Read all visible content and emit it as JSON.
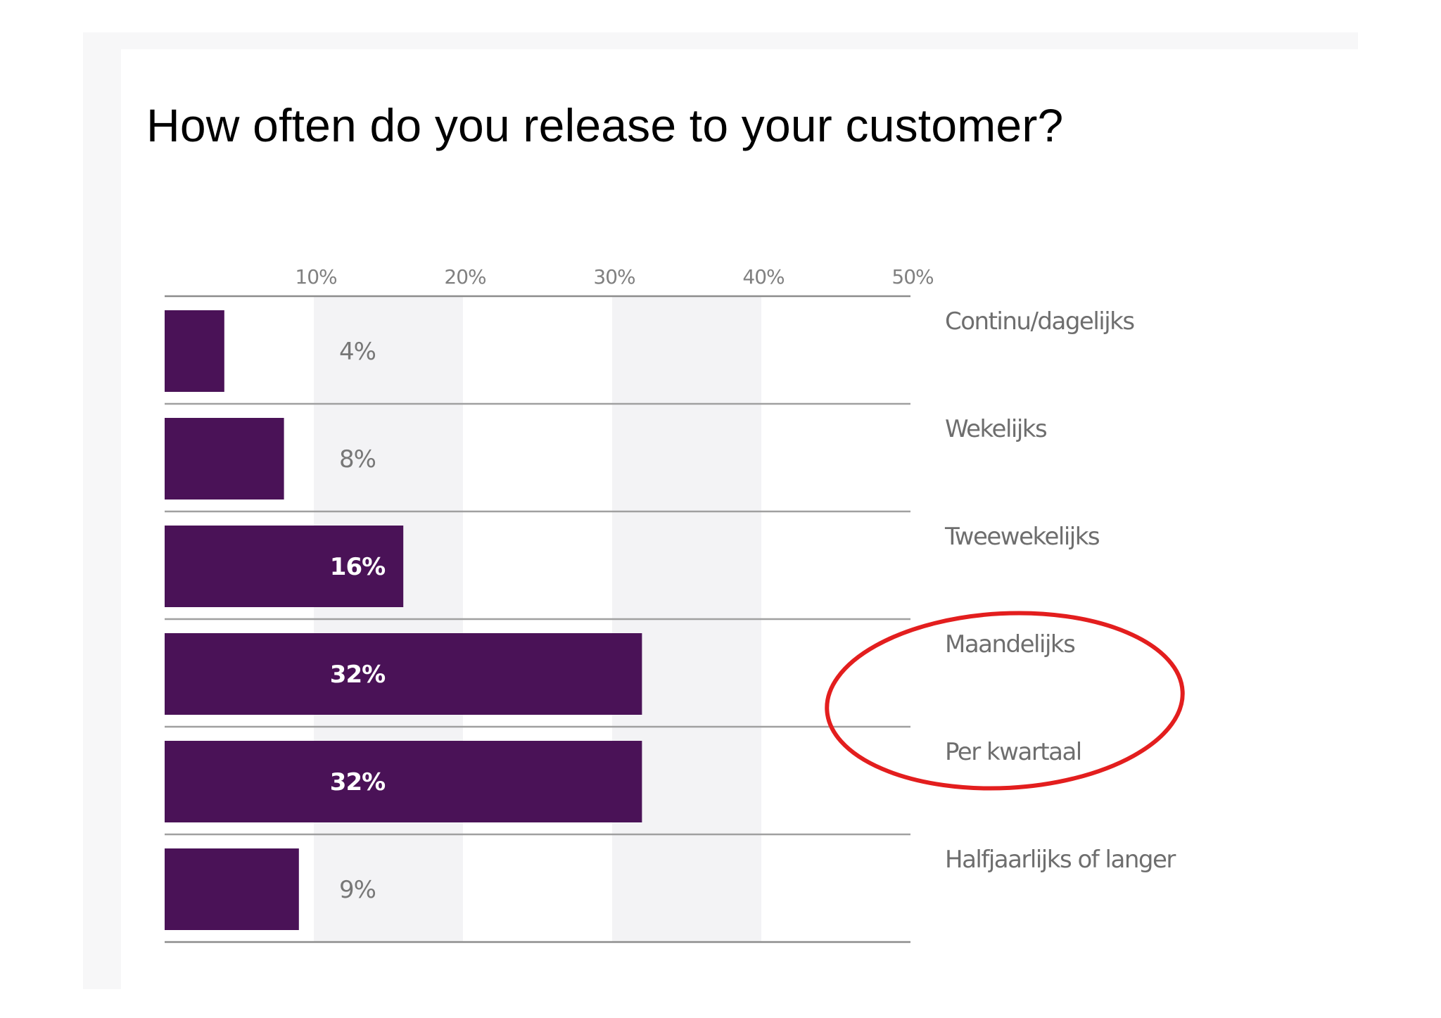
{
  "slide": {
    "title": "How often do you release to your customer?"
  },
  "chart_data": {
    "type": "bar",
    "orientation": "horizontal",
    "categories": [
      "Continu/dagelijks",
      "Wekelijks",
      "Tweewekelijks",
      "Maandelijks",
      "Per kwartaal",
      "Halfjaarlijks of langer"
    ],
    "values": [
      4,
      8,
      16,
      32,
      32,
      9
    ],
    "data_labels": [
      "4%",
      "8%",
      "16%",
      "32%",
      "32%",
      "9%"
    ],
    "x_ticks": [
      "10%",
      "20%",
      "30%",
      "40%",
      "50%"
    ],
    "xlim": [
      0,
      50
    ],
    "grid": "alternating column bands",
    "legend": "none",
    "category_label_position": "right",
    "bar_color": "#4a1257",
    "label_inside_color": "#ffffff",
    "label_outside_color": "#777777",
    "band_color": "#f3f3f5",
    "annotation": {
      "shape": "ellipse",
      "color": "#e31e1e",
      "encircles": [
        "Maandelijks",
        "Per kwartaal"
      ]
    }
  }
}
